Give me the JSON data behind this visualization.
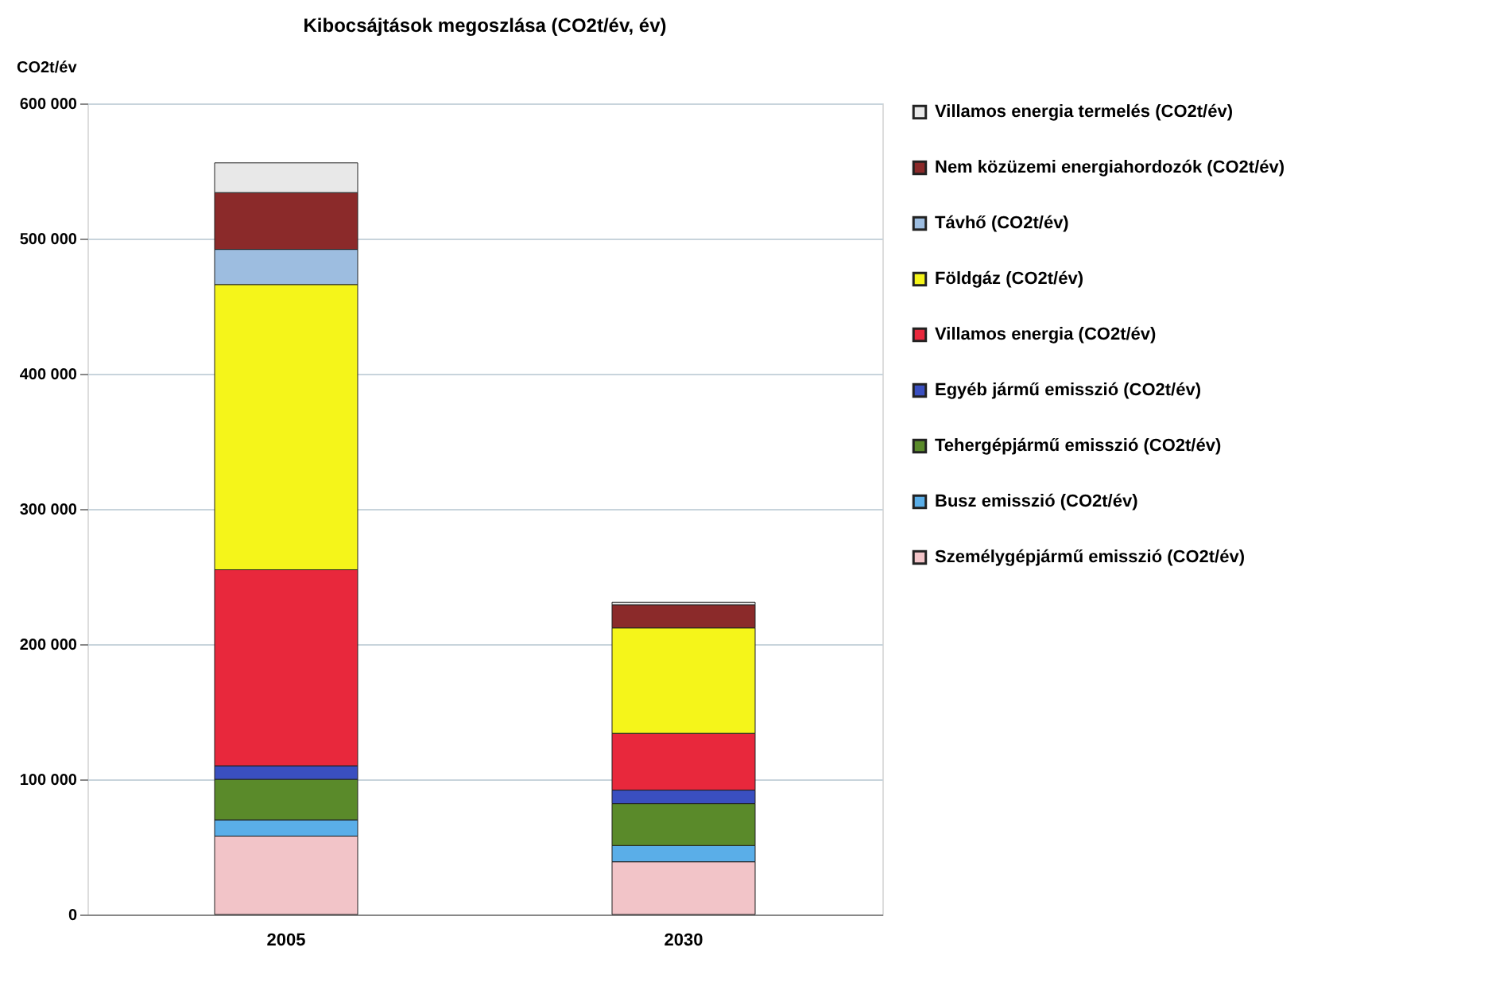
{
  "chart_data": {
    "type": "bar",
    "title": "Kibocsájtások  megoszlása (CO2t/év, év)",
    "ylabel": "CO2t/év",
    "categories": [
      "2005",
      "2030"
    ],
    "stacked": true,
    "grid": "y",
    "legend": "right",
    "ylim": [
      0,
      600000
    ],
    "yticks": [
      0,
      {
        "value": 100000,
        "label": "100 000"
      },
      {
        "value": 200000,
        "label": "200 000"
      },
      {
        "value": 300000,
        "label": "300 000"
      },
      {
        "value": 400000,
        "label": "400 000"
      },
      {
        "value": 500000,
        "label": "500 000"
      },
      {
        "value": 600000,
        "label": "600 000"
      }
    ],
    "series": [
      {
        "name": "Személygépjármű emisszió (CO2t/év)",
        "color": "#f2c4c8",
        "values": [
          58000,
          39000
        ]
      },
      {
        "name": "Busz emisszió (CO2t/év)",
        "color": "#5aaee8",
        "values": [
          12000,
          12000
        ]
      },
      {
        "name": "Tehergépjármű emisszió (CO2t/év)",
        "color": "#5a8a2a",
        "values": [
          30000,
          31000
        ]
      },
      {
        "name": "Egyéb jármű emisszió (CO2t/év)",
        "color": "#3a4fc0",
        "values": [
          10000,
          10000
        ]
      },
      {
        "name": "Villamos energia (CO2t/év)",
        "color": "#e8283c",
        "values": [
          145000,
          42000
        ]
      },
      {
        "name": "Földgáz (CO2t/év)",
        "color": "#f5f51a",
        "values": [
          211000,
          78000
        ]
      },
      {
        "name": "Távhő (CO2t/év)",
        "color": "#9dbde0",
        "values": [
          26000,
          0
        ]
      },
      {
        "name": "Nem közüzemi energiahordozók  (CO2t/év)",
        "color": "#8b2a2a",
        "values": [
          42000,
          17000
        ]
      },
      {
        "name": "Villamos energia termelés (CO2t/év)",
        "color": "#e8e8e8",
        "values": [
          22000,
          2000
        ]
      }
    ]
  }
}
